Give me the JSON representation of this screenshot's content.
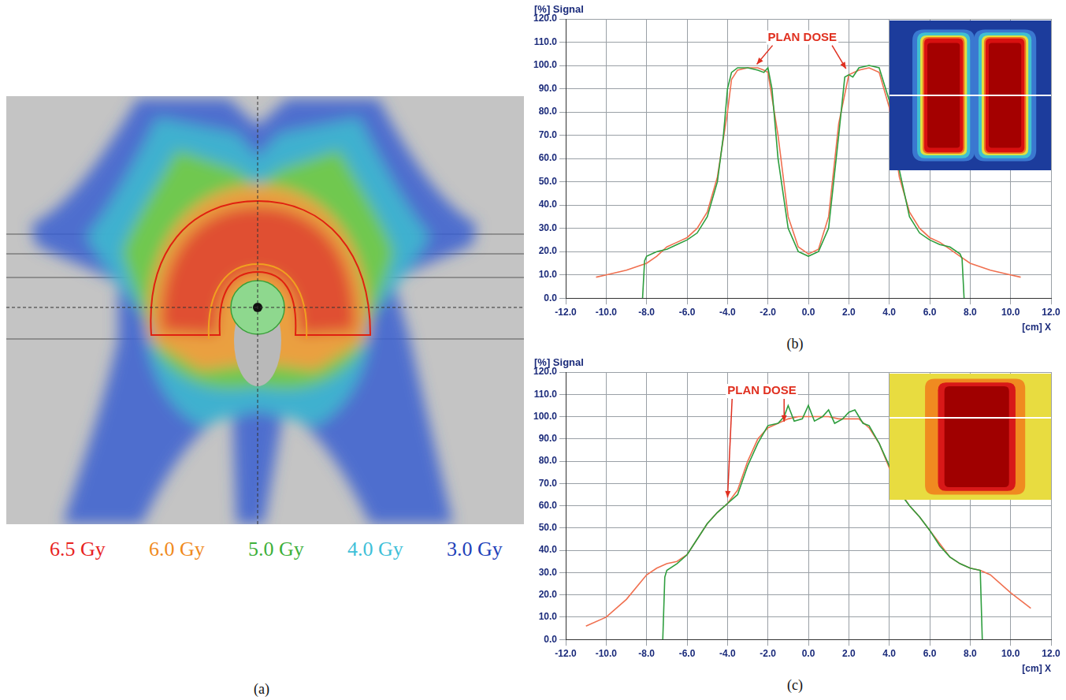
{
  "dose_image": {
    "panel": "(a)",
    "legend": [
      {
        "label": "6.5 Gy",
        "color": "#e8231e"
      },
      {
        "label": "6.0 Gy",
        "color": "#f08a1c"
      },
      {
        "label": "5.0 Gy",
        "color": "#3db03a"
      },
      {
        "label": "4.0 Gy",
        "color": "#3ec0d8"
      },
      {
        "label": "3.0 Gy",
        "color": "#2040b8"
      }
    ]
  },
  "chart_data": [
    {
      "type": "line",
      "panel": "(b)",
      "y_label": "[%] Signal",
      "x_label": "[cm] X",
      "xlim": [
        -12,
        12
      ],
      "xticks": [
        {
          "value": -12,
          "label": "-12.0"
        },
        {
          "value": -10,
          "label": "-10.0"
        },
        {
          "value": -8,
          "label": "-8.0"
        },
        {
          "value": -6,
          "label": "-6.0"
        },
        {
          "value": -4,
          "label": "-4.0"
        },
        {
          "value": -2,
          "label": "-2.0"
        },
        {
          "value": 0,
          "label": "0.0"
        },
        {
          "value": 2,
          "label": "2.0"
        },
        {
          "value": 4,
          "label": "4.0"
        },
        {
          "value": 6,
          "label": "6.0"
        },
        {
          "value": 8,
          "label": "8.0"
        },
        {
          "value": 10,
          "label": "10.0"
        },
        {
          "value": 12,
          "label": "12.0"
        }
      ],
      "ylim": [
        0,
        120
      ],
      "yticks": [
        {
          "value": 0,
          "label": "0.0"
        },
        {
          "value": 10,
          "label": "10.0"
        },
        {
          "value": 20,
          "label": "20.0"
        },
        {
          "value": 30,
          "label": "30.0"
        },
        {
          "value": 40,
          "label": "40.0"
        },
        {
          "value": 50,
          "label": "50.0"
        },
        {
          "value": 60,
          "label": "60.0"
        },
        {
          "value": 70,
          "label": "70.0"
        },
        {
          "value": 80,
          "label": "80.0"
        },
        {
          "value": 90,
          "label": "90.0"
        },
        {
          "value": 100,
          "label": "100.0"
        },
        {
          "value": 110,
          "label": "110.0"
        },
        {
          "value": 120,
          "label": "120.0"
        }
      ],
      "grid": true,
      "series": [
        {
          "color": "#2e9e3e",
          "x": [
            -8.2,
            -8.1,
            -8,
            -7.5,
            -7,
            -6.5,
            -6,
            -5.5,
            -5,
            -4.5,
            -4.2,
            -4,
            -3.8,
            -3.5,
            -3,
            -2.5,
            -2.2,
            -2,
            -1.8,
            -1.5,
            -1,
            -0.5,
            0,
            0.5,
            1,
            1.5,
            1.8,
            2,
            2.2,
            2.5,
            3,
            3.5,
            4,
            4.5,
            5,
            5.5,
            6,
            6.5,
            7,
            7.5,
            7.6,
            7.7
          ],
          "values": [
            0,
            16,
            18,
            20,
            21,
            23,
            25,
            28,
            35,
            50,
            70,
            90,
            97,
            99,
            99,
            98,
            97,
            99,
            90,
            60,
            30,
            20,
            18,
            20,
            30,
            70,
            95,
            96,
            95,
            99,
            100,
            99,
            85,
            55,
            35,
            28,
            25,
            23,
            22,
            19,
            17,
            0
          ]
        },
        {
          "color": "#f07050",
          "x": [
            -10.5,
            -10,
            -9,
            -8,
            -7.5,
            -7,
            -6.5,
            -6,
            -5.5,
            -5,
            -4.5,
            -4,
            -3.8,
            -3.5,
            -3,
            -2.5,
            -2.2,
            -2,
            -1.5,
            -1,
            -0.5,
            0,
            0.5,
            1,
            1.5,
            2,
            2.5,
            3,
            3.5,
            4,
            4.5,
            5,
            5.5,
            6,
            6.5,
            7,
            7.5,
            8,
            9,
            10,
            10.5
          ],
          "values": [
            9,
            10,
            12,
            15,
            18,
            22,
            24,
            26,
            30,
            37,
            52,
            80,
            94,
            98,
            99,
            99,
            98,
            97,
            70,
            35,
            22,
            19,
            21,
            35,
            75,
            96,
            98,
            99,
            97,
            82,
            52,
            37,
            30,
            26,
            24,
            21,
            18,
            15,
            12,
            10,
            9
          ]
        }
      ],
      "annotations": [
        {
          "text": "PLAN DOSE",
          "x": -0.3,
          "y": 112,
          "arrows": [
            {
              "x": -2.6,
              "y": 100
            },
            {
              "x": 1.9,
              "y": 98
            }
          ]
        }
      ]
    },
    {
      "type": "line",
      "panel": "(c)",
      "y_label": "[%] Signal",
      "x_label": "[cm] X",
      "xlim": [
        -12,
        12
      ],
      "xticks": [
        {
          "value": -12,
          "label": "-12.0"
        },
        {
          "value": -10,
          "label": "-10.0"
        },
        {
          "value": -8,
          "label": "-8.0"
        },
        {
          "value": -6,
          "label": "-6.0"
        },
        {
          "value": -4,
          "label": "-4.0"
        },
        {
          "value": -2,
          "label": "-2.0"
        },
        {
          "value": 0,
          "label": "0.0"
        },
        {
          "value": 2,
          "label": "2.0"
        },
        {
          "value": 4,
          "label": "4.0"
        },
        {
          "value": 6,
          "label": "6.0"
        },
        {
          "value": 8,
          "label": "8.0"
        },
        {
          "value": 10,
          "label": "10.0"
        },
        {
          "value": 12,
          "label": "12.0"
        }
      ],
      "ylim": [
        0,
        120
      ],
      "yticks": [
        {
          "value": 0,
          "label": "0.0"
        },
        {
          "value": 10,
          "label": "10.0"
        },
        {
          "value": 20,
          "label": "20.0"
        },
        {
          "value": 30,
          "label": "30.0"
        },
        {
          "value": 40,
          "label": "40.0"
        },
        {
          "value": 50,
          "label": "50.0"
        },
        {
          "value": 60,
          "label": "60.0"
        },
        {
          "value": 70,
          "label": "70.0"
        },
        {
          "value": 80,
          "label": "80.0"
        },
        {
          "value": 90,
          "label": "90.0"
        },
        {
          "value": 100,
          "label": "100.0"
        },
        {
          "value": 110,
          "label": "110.0"
        },
        {
          "value": 120,
          "label": "120.0"
        }
      ],
      "grid": true,
      "series": [
        {
          "color": "#2e9e3e",
          "x": [
            -7.2,
            -7.1,
            -7,
            -6.5,
            -6,
            -5.5,
            -5,
            -4.5,
            -4,
            -3.5,
            -3,
            -2.5,
            -2,
            -1.5,
            -1.2,
            -1,
            -0.7,
            -0.3,
            0,
            0.3,
            0.7,
            1,
            1.3,
            1.7,
            2,
            2.3,
            2.7,
            3,
            3.5,
            4,
            4.5,
            5,
            5.5,
            6,
            6.5,
            7,
            7.5,
            8,
            8.5,
            8.6
          ],
          "values": [
            0,
            28,
            31,
            34,
            38,
            45,
            52,
            57,
            61,
            65,
            78,
            88,
            96,
            97,
            100,
            105,
            98,
            99,
            105,
            98,
            100,
            103,
            97,
            99,
            102,
            103,
            97,
            96,
            88,
            78,
            66,
            60,
            55,
            49,
            42,
            37,
            34,
            32,
            31,
            0
          ]
        },
        {
          "color": "#f07050",
          "x": [
            -11,
            -10,
            -9,
            -8,
            -7.5,
            -7,
            -6.5,
            -6,
            -5.5,
            -5,
            -4.5,
            -4,
            -3.5,
            -3,
            -2.5,
            -2,
            -1.5,
            -1,
            -0.5,
            0,
            0.5,
            1,
            1.5,
            2,
            2.5,
            3,
            3.5,
            4,
            4.5,
            5,
            5.5,
            6,
            6.5,
            7,
            7.5,
            8,
            8.5,
            9,
            10,
            11
          ],
          "values": [
            6,
            10,
            18,
            29,
            32,
            34,
            35,
            38,
            45,
            52,
            57,
            61,
            67,
            80,
            90,
            95,
            97,
            99,
            100,
            100,
            100,
            100,
            99,
            99,
            99,
            95,
            88,
            77,
            67,
            60,
            55,
            49,
            43,
            37,
            34,
            32,
            31,
            29,
            21,
            14
          ]
        }
      ],
      "annotations": [
        {
          "text": "PLAN DOSE",
          "x": -2.3,
          "y": 111.5,
          "arrows": [
            {
              "x": -1.2,
              "y": 97
            },
            {
              "x": -4,
              "y": 63
            }
          ]
        }
      ]
    }
  ]
}
